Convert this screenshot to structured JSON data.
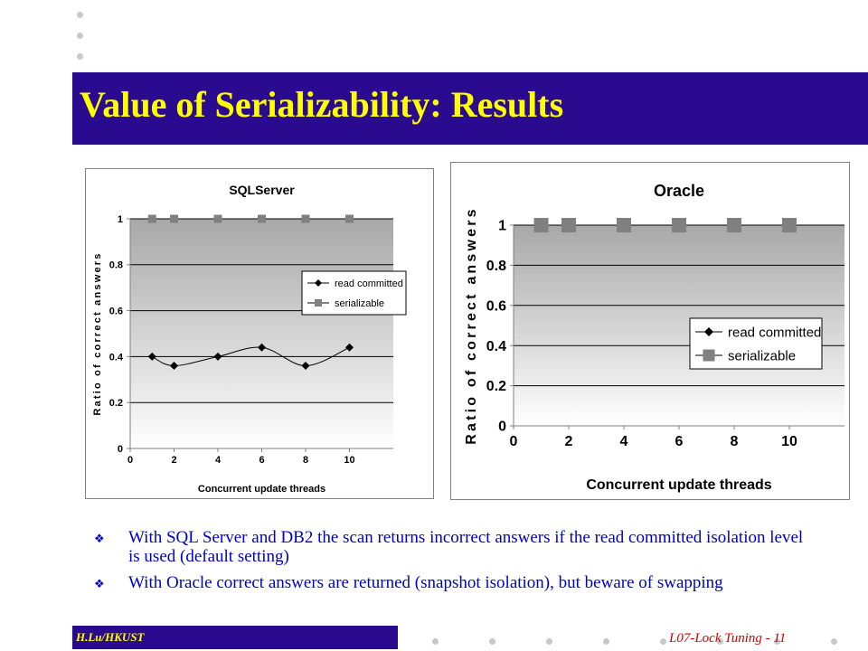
{
  "slide": {
    "title": "Value of Serializability: Results",
    "bullets": [
      "With SQL Server and DB2 the scan returns incorrect answers if the read committed isolation level is used (default setting)",
      "With Oracle correct answers are returned (snapshot isolation), but beware of swapping"
    ],
    "bullet_icon": "diamond-flower-icon",
    "footer_author": "H.Lu/HKUST",
    "footer_right": "L07-Lock Tuning - 11",
    "colors": {
      "title_bar": "#2a0a8e",
      "title_text": "#ffff00",
      "bullet_text": "#0000cc",
      "footer_right": "#cc0000"
    }
  },
  "chart_data": [
    {
      "type": "line",
      "title": "SQLServer",
      "xlabel": "Concurrent update threads",
      "ylabel": "Ratio of correct answers",
      "xlim": [
        0,
        12
      ],
      "ylim": [
        0,
        1
      ],
      "xticks": [
        0,
        2,
        4,
        6,
        8,
        10
      ],
      "yticks": [
        0,
        0.2,
        0.4,
        0.6,
        0.8,
        1
      ],
      "xtick_labels": [
        "0",
        "2",
        "4",
        "6",
        "8",
        "10"
      ],
      "ytick_labels": [
        "0",
        "0.2",
        "0.4",
        "0.6",
        "0.8",
        "1"
      ],
      "grid": true,
      "legend": "right",
      "smooth": true,
      "series": [
        {
          "name": "read committed",
          "marker": "diamond",
          "x": [
            1,
            2,
            4,
            6,
            8,
            10
          ],
          "y": [
            0.4,
            0.36,
            0.4,
            0.44,
            0.36,
            0.44
          ]
        },
        {
          "name": "serializable",
          "marker": "square",
          "x": [
            1,
            2,
            4,
            6,
            8,
            10
          ],
          "y": [
            1,
            1,
            1,
            1,
            1,
            1
          ]
        }
      ]
    },
    {
      "type": "scatter",
      "title": "Oracle",
      "xlabel": "Concurrent update threads",
      "ylabel": "Ratio of correct answers",
      "xlim": [
        0,
        12
      ],
      "ylim": [
        0,
        1
      ],
      "xticks": [
        0,
        2,
        4,
        6,
        8,
        10
      ],
      "yticks": [
        0,
        0.2,
        0.4,
        0.6,
        0.8,
        1
      ],
      "xtick_labels": [
        "0",
        "2",
        "4",
        "6",
        "8",
        "10"
      ],
      "ytick_labels": [
        "0",
        "0.2",
        "0.4",
        "0.6",
        "0.8",
        "1"
      ],
      "grid": true,
      "legend": "right",
      "smooth": false,
      "series": [
        {
          "name": "read committed",
          "marker": "diamond",
          "x": [],
          "y": []
        },
        {
          "name": "serializable",
          "marker": "square",
          "x": [
            1,
            2,
            4,
            6,
            8,
            10
          ],
          "y": [
            1,
            1,
            1,
            1,
            1,
            1
          ]
        }
      ]
    }
  ]
}
